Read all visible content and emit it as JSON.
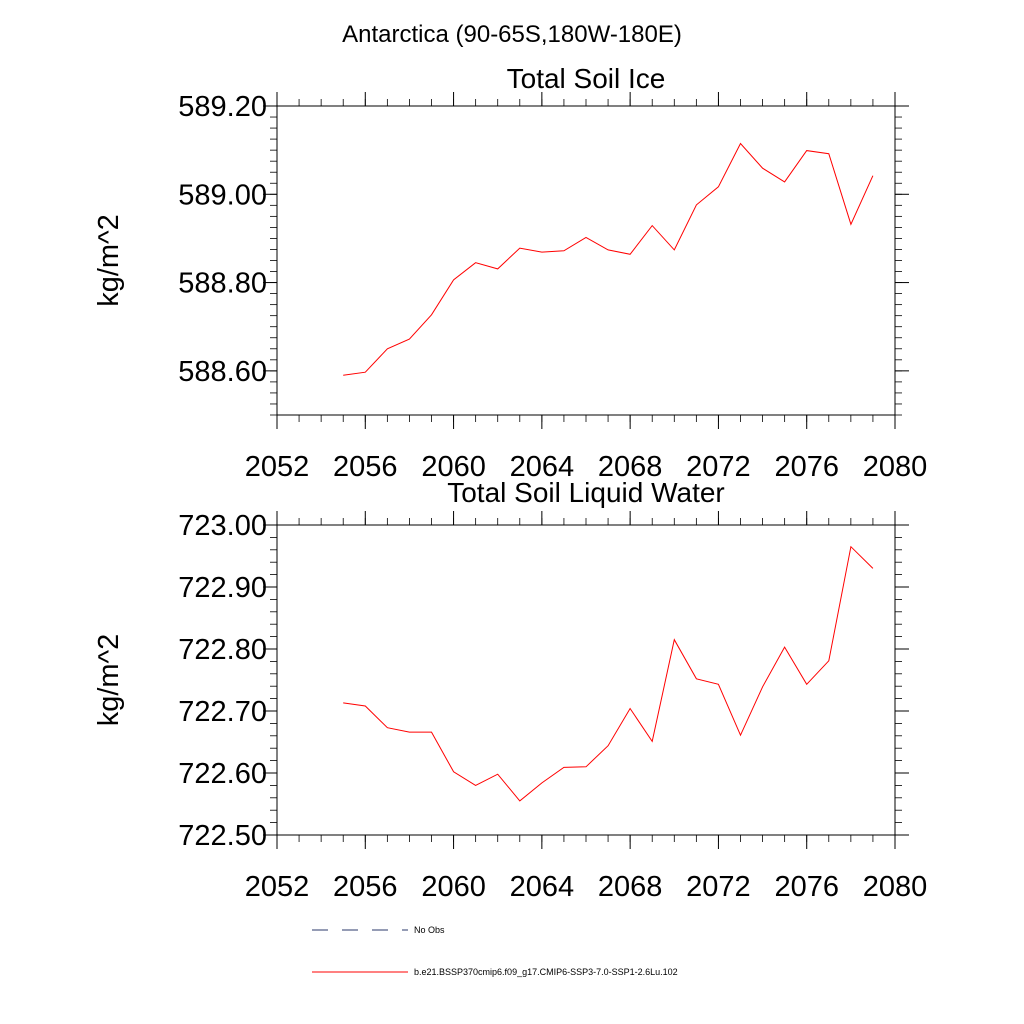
{
  "page": {
    "title": "Antarctica (90-65S,180W-180E)"
  },
  "legend": [
    {
      "label": "No Obs",
      "color": "#2b3a6b",
      "dash": "dashed"
    },
    {
      "label": "b.e21.BSSP370cmip6.f09_g17.CMIP6-SSP3-7.0-SSP1-2.6Lu.102",
      "color": "#ff0000",
      "dash": "solid"
    }
  ],
  "chart_data": [
    {
      "type": "line",
      "title": "Total Soil Ice",
      "xlabel": "",
      "ylabel": "kg/m^2",
      "xlim": [
        2052,
        2080
      ],
      "ylim": [
        588.5,
        589.2
      ],
      "xticks": [
        "2052",
        "2056",
        "2060",
        "2064",
        "2068",
        "2072",
        "2076",
        "2080"
      ],
      "yticks": [
        "588.60",
        "588.80",
        "589.00",
        "589.20"
      ],
      "grid": false,
      "series": [
        {
          "color": "#ff0000",
          "x": [
            2055,
            2056,
            2057,
            2058,
            2059,
            2060,
            2061,
            2062,
            2063,
            2064,
            2065,
            2066,
            2067,
            2068,
            2069,
            2070,
            2071,
            2072,
            2073,
            2074,
            2075,
            2076,
            2077,
            2078,
            2079
          ],
          "values": [
            588.59,
            588.597,
            588.65,
            588.672,
            588.727,
            588.806,
            588.845,
            588.831,
            588.878,
            588.869,
            588.872,
            588.902,
            588.874,
            588.864,
            588.929,
            588.874,
            588.976,
            589.017,
            589.115,
            589.059,
            589.028,
            589.099,
            589.092,
            588.932,
            589.042
          ]
        }
      ]
    },
    {
      "type": "line",
      "title": "Total Soil Liquid Water",
      "xlabel": "",
      "ylabel": "kg/m^2",
      "xlim": [
        2052,
        2080
      ],
      "ylim": [
        722.5,
        723.0
      ],
      "xticks": [
        "2052",
        "2056",
        "2060",
        "2064",
        "2068",
        "2072",
        "2076",
        "2080"
      ],
      "yticks": [
        "722.50",
        "722.60",
        "722.70",
        "722.80",
        "722.90",
        "723.00"
      ],
      "grid": false,
      "series": [
        {
          "color": "#ff0000",
          "x": [
            2055,
            2056,
            2057,
            2058,
            2059,
            2060,
            2061,
            2062,
            2063,
            2064,
            2065,
            2066,
            2067,
            2068,
            2069,
            2070,
            2071,
            2072,
            2073,
            2074,
            2075,
            2076,
            2077,
            2078,
            2079
          ],
          "values": [
            722.713,
            722.708,
            722.673,
            722.666,
            722.666,
            722.602,
            722.58,
            722.598,
            722.555,
            722.584,
            722.609,
            722.61,
            722.644,
            722.704,
            722.651,
            722.815,
            722.752,
            722.743,
            722.661,
            722.739,
            722.803,
            722.743,
            722.781,
            722.965,
            722.93
          ]
        }
      ]
    }
  ]
}
